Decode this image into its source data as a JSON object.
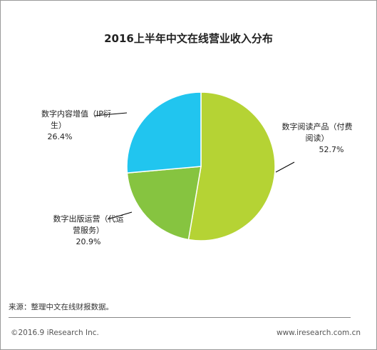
{
  "chart_data": {
    "type": "pie",
    "title": "2016上半年中文在线营业收入分布",
    "slices": [
      {
        "label_lines": [
          "数字阅读产品（付费",
          "阅读）"
        ],
        "value_label": "52.7%",
        "value": 52.7,
        "color": "#b5d334"
      },
      {
        "label_lines": [
          "数字出版运营（代运",
          "营服务）"
        ],
        "value_label": "20.9%",
        "value": 20.9,
        "color": "#86c440"
      },
      {
        "label_lines": [
          "数字内容增值（IP衍",
          "生）"
        ],
        "value_label": "26.4%",
        "value": 26.4,
        "color": "#21c5ef"
      }
    ]
  },
  "footer": {
    "source": "来源：整理中文在线财报数据。",
    "copyright": "©2016.9 iResearch Inc.",
    "website": "www.iresearch.com.cn"
  }
}
